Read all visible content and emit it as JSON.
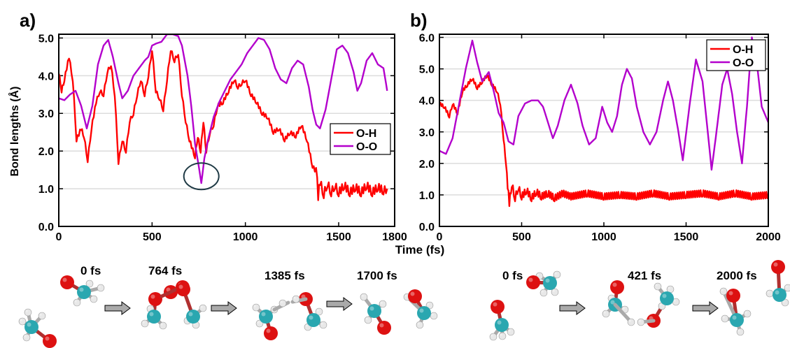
{
  "panels": [
    {
      "label": "a)"
    },
    {
      "label": "b)"
    }
  ],
  "xlabel": "Time (fs)",
  "ylabel": "Bond lengths (Å)",
  "chart_data": [
    {
      "type": "line",
      "ylim": [
        0,
        5.1
      ],
      "xlim": [
        0,
        1800
      ],
      "xticks": [
        0,
        500,
        1000,
        1500,
        1800
      ],
      "yticks": [
        0.0,
        1.0,
        2.0,
        3.0,
        4.0,
        5.0
      ],
      "grid": "horizontal",
      "legend": "center-right",
      "annotation": "circle around O-O minimum near 764 fs",
      "series": [
        {
          "name": "O-H",
          "color": "#ff0000",
          "points": [
            [
              0,
              4.1
            ],
            [
              15,
              3.6
            ],
            [
              30,
              3.9
            ],
            [
              55,
              4.5
            ],
            [
              75,
              3.9
            ],
            [
              95,
              2.3
            ],
            [
              120,
              2.6
            ],
            [
              135,
              2.4
            ],
            [
              155,
              1.75
            ],
            [
              175,
              2.6
            ],
            [
              200,
              3.3
            ],
            [
              220,
              3.6
            ],
            [
              240,
              3.5
            ],
            [
              260,
              4.1
            ],
            [
              280,
              4.3
            ],
            [
              300,
              3.5
            ],
            [
              320,
              1.7
            ],
            [
              340,
              2.3
            ],
            [
              360,
              2.0
            ],
            [
              380,
              2.8
            ],
            [
              400,
              3.0
            ],
            [
              420,
              3.5
            ],
            [
              440,
              3.9
            ],
            [
              460,
              3.5
            ],
            [
              480,
              4.0
            ],
            [
              500,
              4.7
            ],
            [
              520,
              3.6
            ],
            [
              540,
              3.4
            ],
            [
              560,
              3.1
            ],
            [
              580,
              3.9
            ],
            [
              600,
              4.7
            ],
            [
              620,
              4.4
            ],
            [
              640,
              4.6
            ],
            [
              660,
              3.5
            ],
            [
              680,
              2.8
            ],
            [
              700,
              2.3
            ],
            [
              730,
              1.85
            ],
            [
              745,
              2.4
            ],
            [
              760,
              2.0
            ],
            [
              775,
              2.8
            ],
            [
              790,
              2.0
            ],
            [
              810,
              2.5
            ],
            [
              830,
              2.7
            ],
            [
              850,
              3.2
            ],
            [
              880,
              3.3
            ],
            [
              910,
              3.6
            ],
            [
              940,
              3.9
            ],
            [
              960,
              3.7
            ],
            [
              980,
              3.8
            ],
            [
              1000,
              3.9
            ],
            [
              1030,
              3.5
            ],
            [
              1060,
              3.3
            ],
            [
              1090,
              3.0
            ],
            [
              1120,
              2.9
            ],
            [
              1150,
              2.5
            ],
            [
              1180,
              2.6
            ],
            [
              1210,
              2.3
            ],
            [
              1240,
              2.5
            ],
            [
              1270,
              2.4
            ],
            [
              1300,
              2.7
            ],
            [
              1330,
              2.3
            ],
            [
              1360,
              1.6
            ],
            [
              1385,
              1.4
            ],
            [
              1390,
              0.8
            ],
            [
              1400,
              1.2
            ],
            [
              1420,
              0.85
            ],
            [
              1440,
              1.15
            ],
            [
              1460,
              0.9
            ],
            [
              1480,
              1.1
            ],
            [
              1500,
              0.9
            ],
            [
              1530,
              1.1
            ],
            [
              1560,
              0.9
            ],
            [
              1590,
              1.05
            ],
            [
              1620,
              0.9
            ],
            [
              1650,
              1.1
            ],
            [
              1680,
              0.9
            ],
            [
              1710,
              1.05
            ],
            [
              1740,
              0.95
            ],
            [
              1760,
              1.0
            ]
          ]
        },
        {
          "name": "O-O",
          "color": "#b300cc",
          "points": [
            [
              0,
              3.4
            ],
            [
              30,
              3.35
            ],
            [
              60,
              3.5
            ],
            [
              90,
              3.6
            ],
            [
              120,
              3.2
            ],
            [
              150,
              2.6
            ],
            [
              180,
              3.2
            ],
            [
              210,
              4.3
            ],
            [
              240,
              4.8
            ],
            [
              265,
              4.95
            ],
            [
              290,
              4.5
            ],
            [
              320,
              3.8
            ],
            [
              340,
              3.4
            ],
            [
              370,
              3.6
            ],
            [
              400,
              4.0
            ],
            [
              430,
              4.2
            ],
            [
              460,
              4.4
            ],
            [
              480,
              4.5
            ],
            [
              500,
              4.8
            ],
            [
              520,
              4.85
            ],
            [
              550,
              4.9
            ],
            [
              580,
              5.1
            ],
            [
              610,
              5.1
            ],
            [
              640,
              5.05
            ],
            [
              660,
              4.8
            ],
            [
              690,
              4.0
            ],
            [
              710,
              3.2
            ],
            [
              730,
              2.2
            ],
            [
              750,
              1.6
            ],
            [
              764,
              1.15
            ],
            [
              780,
              1.8
            ],
            [
              800,
              2.3
            ],
            [
              830,
              2.9
            ],
            [
              860,
              3.3
            ],
            [
              890,
              3.6
            ],
            [
              920,
              3.9
            ],
            [
              950,
              4.1
            ],
            [
              980,
              4.3
            ],
            [
              1010,
              4.6
            ],
            [
              1040,
              4.8
            ],
            [
              1070,
              5.0
            ],
            [
              1100,
              4.95
            ],
            [
              1130,
              4.7
            ],
            [
              1160,
              4.2
            ],
            [
              1190,
              3.9
            ],
            [
              1220,
              3.8
            ],
            [
              1250,
              4.2
            ],
            [
              1280,
              4.4
            ],
            [
              1310,
              4.3
            ],
            [
              1340,
              3.7
            ],
            [
              1360,
              3.1
            ],
            [
              1380,
              2.7
            ],
            [
              1400,
              2.6
            ],
            [
              1430,
              3.1
            ],
            [
              1460,
              3.9
            ],
            [
              1490,
              4.7
            ],
            [
              1520,
              4.8
            ],
            [
              1550,
              4.6
            ],
            [
              1580,
              4.1
            ],
            [
              1600,
              3.6
            ],
            [
              1620,
              3.8
            ],
            [
              1650,
              4.4
            ],
            [
              1680,
              4.6
            ],
            [
              1710,
              4.3
            ],
            [
              1740,
              4.2
            ],
            [
              1760,
              3.6
            ]
          ]
        }
      ]
    },
    {
      "type": "line",
      "ylim": [
        0,
        6.1
      ],
      "xlim": [
        0,
        2000
      ],
      "xticks": [
        0,
        500,
        1000,
        1500,
        2000
      ],
      "yticks": [
        0.0,
        1.0,
        2.0,
        3.0,
        4.0,
        5.0,
        6.0
      ],
      "grid": "horizontal",
      "legend": "top-right",
      "series": [
        {
          "name": "O-H",
          "color": "#ff0000",
          "points": [
            [
              0,
              3.9
            ],
            [
              30,
              3.8
            ],
            [
              60,
              3.5
            ],
            [
              80,
              3.9
            ],
            [
              110,
              3.6
            ],
            [
              140,
              4.3
            ],
            [
              170,
              4.5
            ],
            [
              200,
              4.7
            ],
            [
              230,
              4.4
            ],
            [
              260,
              4.6
            ],
            [
              290,
              4.8
            ],
            [
              320,
              4.5
            ],
            [
              350,
              4.3
            ],
            [
              370,
              3.9
            ],
            [
              390,
              2.8
            ],
            [
              405,
              2.0
            ],
            [
              415,
              1.3
            ],
            [
              425,
              0.75
            ],
            [
              440,
              1.35
            ],
            [
              460,
              0.9
            ],
            [
              480,
              1.25
            ],
            [
              500,
              0.95
            ],
            [
              530,
              1.15
            ],
            [
              560,
              0.9
            ],
            [
              590,
              1.1
            ],
            [
              620,
              0.95
            ],
            [
              660,
              1.05
            ],
            [
              700,
              0.9
            ],
            [
              750,
              1.05
            ],
            [
              800,
              0.95
            ],
            [
              900,
              1.05
            ],
            [
              1000,
              0.95
            ],
            [
              1100,
              1.0
            ],
            [
              1200,
              0.95
            ],
            [
              1300,
              1.05
            ],
            [
              1400,
              0.95
            ],
            [
              1500,
              1.0
            ],
            [
              1600,
              1.05
            ],
            [
              1700,
              0.95
            ],
            [
              1800,
              1.05
            ],
            [
              1900,
              0.95
            ],
            [
              2000,
              1.0
            ]
          ]
        },
        {
          "name": "O-O",
          "color": "#b300cc",
          "points": [
            [
              0,
              2.4
            ],
            [
              40,
              2.3
            ],
            [
              80,
              2.8
            ],
            [
              120,
              3.9
            ],
            [
              160,
              5.0
            ],
            [
              200,
              5.9
            ],
            [
              230,
              5.2
            ],
            [
              260,
              4.6
            ],
            [
              300,
              4.9
            ],
            [
              330,
              4.3
            ],
            [
              360,
              3.6
            ],
            [
              390,
              3.3
            ],
            [
              420,
              2.7
            ],
            [
              450,
              2.6
            ],
            [
              480,
              3.5
            ],
            [
              520,
              3.9
            ],
            [
              560,
              4.0
            ],
            [
              600,
              4.0
            ],
            [
              630,
              3.8
            ],
            [
              660,
              3.3
            ],
            [
              690,
              2.8
            ],
            [
              720,
              3.2
            ],
            [
              760,
              4.0
            ],
            [
              800,
              4.5
            ],
            [
              840,
              3.9
            ],
            [
              870,
              3.2
            ],
            [
              910,
              2.6
            ],
            [
              950,
              2.8
            ],
            [
              990,
              3.8
            ],
            [
              1020,
              3.3
            ],
            [
              1050,
              3.0
            ],
            [
              1080,
              3.5
            ],
            [
              1110,
              4.5
            ],
            [
              1140,
              5.0
            ],
            [
              1170,
              4.7
            ],
            [
              1200,
              3.8
            ],
            [
              1240,
              3.0
            ],
            [
              1280,
              2.6
            ],
            [
              1320,
              3.0
            ],
            [
              1360,
              4.0
            ],
            [
              1390,
              4.6
            ],
            [
              1420,
              4.0
            ],
            [
              1450,
              3.1
            ],
            [
              1480,
              2.1
            ],
            [
              1520,
              3.8
            ],
            [
              1560,
              5.3
            ],
            [
              1600,
              4.6
            ],
            [
              1630,
              3.1
            ],
            [
              1655,
              1.8
            ],
            [
              1680,
              2.8
            ],
            [
              1720,
              4.5
            ],
            [
              1750,
              5.0
            ],
            [
              1780,
              4.2
            ],
            [
              1810,
              3.0
            ],
            [
              1840,
              2.0
            ],
            [
              1870,
              3.8
            ],
            [
              1900,
              6.0
            ],
            [
              1930,
              5.2
            ],
            [
              1960,
              3.8
            ],
            [
              2000,
              3.3
            ]
          ]
        }
      ]
    }
  ],
  "snapshots": [
    {
      "label": "0 fs"
    },
    {
      "label": "764 fs"
    },
    {
      "label": "1385 fs"
    },
    {
      "label": "1700 fs"
    },
    {
      "label": "0 fs"
    },
    {
      "label": "421 fs"
    },
    {
      "label": "2000 fs"
    }
  ],
  "atom_colors": {
    "oxygen": "#dd1111",
    "carbon": "#2aa7b0",
    "hydrogen": "#e8e8e8",
    "bond": "#aaaaaa",
    "arrow": "#aaaaaa"
  }
}
